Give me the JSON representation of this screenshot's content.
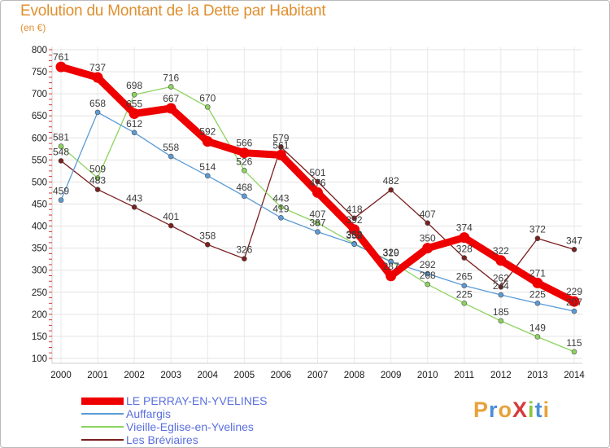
{
  "header": {
    "title": "Evolution du Montant de la Dette par Habitant",
    "unit": "(en €)"
  },
  "logo": {
    "text": "ProXiti",
    "letter_colors": [
      "#e8a13a",
      "#4a8fd6",
      "#e8a13a",
      "#d63a3a",
      "#8dc63f",
      "#4a8fd6",
      "#e8a13a"
    ]
  },
  "chart_data": {
    "type": "line",
    "title": "Evolution du Montant de la Dette par Habitant",
    "ylabel": "(en €)",
    "ylim": [
      100,
      800
    ],
    "yticks": [
      100,
      150,
      200,
      250,
      300,
      350,
      400,
      450,
      500,
      550,
      600,
      650,
      700,
      750,
      800
    ],
    "categories": [
      "2000",
      "2001",
      "2002",
      "2003",
      "2004",
      "2005",
      "2006",
      "2007",
      "2008",
      "2009",
      "2010",
      "2011",
      "2012",
      "2013",
      "2014"
    ],
    "legend_position": "bottom-left",
    "series": [
      {
        "name": "Les Bréviaires",
        "color": "#7a1f1f",
        "values": [
          548,
          483,
          443,
          401,
          358,
          326,
          579,
          501,
          418,
          482,
          407,
          328,
          262,
          372,
          347
        ]
      },
      {
        "name": "Vieille-Eglise-en-Yvelines",
        "color": "#8dd35f",
        "values": [
          581,
          509,
          698,
          716,
          670,
          526,
          443,
          407,
          360,
          320,
          268,
          225,
          185,
          149,
          115
        ]
      },
      {
        "name": "Auffargis",
        "color": "#5b9bd5",
        "values": [
          459,
          658,
          612,
          558,
          514,
          468,
          419,
          387,
          359,
          319,
          292,
          265,
          244,
          225,
          207
        ]
      },
      {
        "name": "LE PERRAY-EN-YVELINES",
        "color": "#ee0000",
        "values": [
          761,
          737,
          655,
          667,
          592,
          566,
          561,
          476,
          392,
          287,
          350,
          374,
          322,
          271,
          229
        ]
      }
    ],
    "legend": [
      {
        "name": "LE PERRAY-EN-YVELINES",
        "color": "#ee0000"
      },
      {
        "name": "Auffargis",
        "color": "#5b9bd5"
      },
      {
        "name": "Vieille-Eglise-en-Yvelines",
        "color": "#8dd35f"
      },
      {
        "name": "Les Bréviaires",
        "color": "#7a1f1f"
      }
    ]
  }
}
